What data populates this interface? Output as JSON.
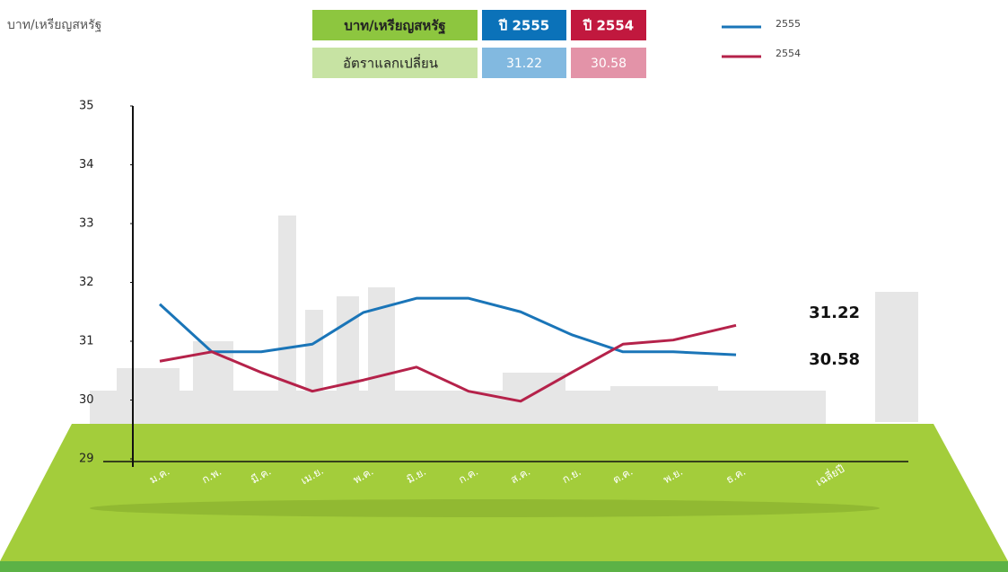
{
  "chart_data": {
    "type": "line",
    "y_label": "บาท/เหรียญสหรัฐ",
    "categories": [
      "ม.ค.",
      "ก.พ.",
      "มี.ค.",
      "เม.ย.",
      "พ.ค.",
      "มิ.ย.",
      "ก.ค.",
      "ส.ค.",
      "ก.ย.",
      "ต.ค.",
      "พ.ย.",
      "ธ.ค.",
      "เฉลี่ยปี"
    ],
    "series": [
      {
        "name": "2555",
        "color": "#1a75b8",
        "values": [
          31.63,
          30.82,
          30.82,
          30.95,
          31.49,
          31.73,
          31.73,
          31.5,
          31.11,
          30.82,
          30.82,
          30.77,
          null
        ],
        "average": 31.22
      },
      {
        "name": "2554",
        "color": "#b5224a",
        "values": [
          30.66,
          30.82,
          30.47,
          30.15,
          30.34,
          30.56,
          30.15,
          29.98,
          30.47,
          30.95,
          31.02,
          31.27,
          null
        ],
        "average": 30.58
      }
    ],
    "ylim": [
      29,
      35
    ],
    "yticks": [
      29,
      30,
      31,
      32,
      33,
      34,
      35
    ]
  },
  "table": {
    "header": [
      "บาท/เหรียญสหรัฐ",
      "ปี 2555",
      "ปี 2554"
    ],
    "row_label": "อัตราแลกเปลี่ยน"
  }
}
